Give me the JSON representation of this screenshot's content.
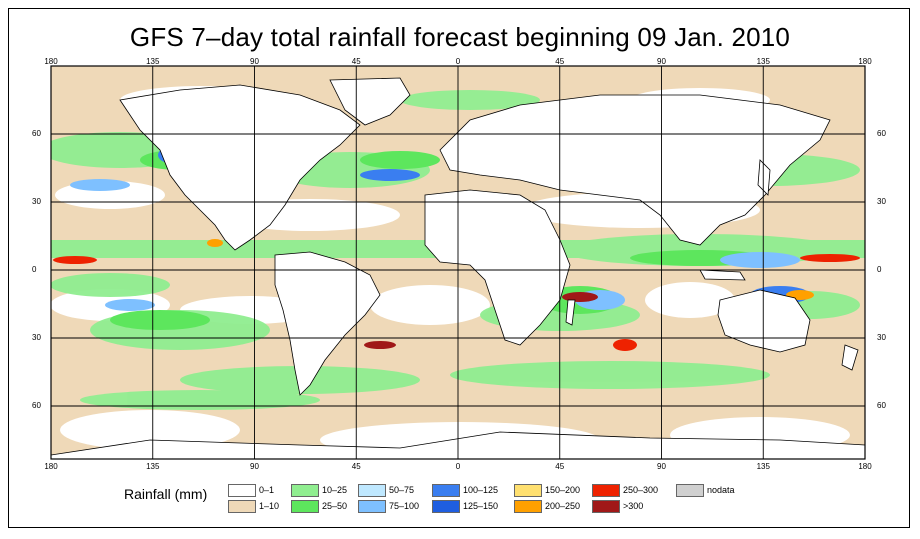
{
  "title": "GFS 7–day total rainfall forecast beginning 09 Jan. 2010",
  "x_ticks_top": [
    "180",
    "135",
    "90",
    "45",
    "0",
    "45",
    "90",
    "135",
    "180"
  ],
  "x_ticks_bottom": [
    "180",
    "135",
    "90",
    "45",
    "0",
    "45",
    "90",
    "135",
    "180"
  ],
  "y_ticks_left": [
    "60",
    "30",
    "0",
    "30",
    "60"
  ],
  "y_ticks_right": [
    "60",
    "30",
    "0",
    "30",
    "60"
  ],
  "legend": {
    "title": "Rainfall (mm)",
    "items": [
      {
        "label": "0–1",
        "color": "#ffffff"
      },
      {
        "label": "1–10",
        "color": "#efd9b8"
      },
      {
        "label": "10–25",
        "color": "#90ee90"
      },
      {
        "label": "25–50",
        "color": "#5de65d"
      },
      {
        "label": "50–75",
        "color": "#bfe8ff"
      },
      {
        "label": "75–100",
        "color": "#7ec0ff"
      },
      {
        "label": "100–125",
        "color": "#3a7ef0"
      },
      {
        "label": "125–150",
        "color": "#1f5ee0"
      },
      {
        "label": "150–200",
        "color": "#ffe070"
      },
      {
        "label": "200–250",
        "color": "#ffa000"
      },
      {
        "label": "250–300",
        "color": "#ee2200"
      },
      {
        "label": ">300",
        "color": "#a01818"
      },
      {
        "label": "nodata",
        "color": "#d0d0d0"
      }
    ]
  },
  "colors": {
    "ocean_base": "#efd9b8",
    "land": "#ffffff",
    "grid": "#000000",
    "coast": "#000000"
  }
}
